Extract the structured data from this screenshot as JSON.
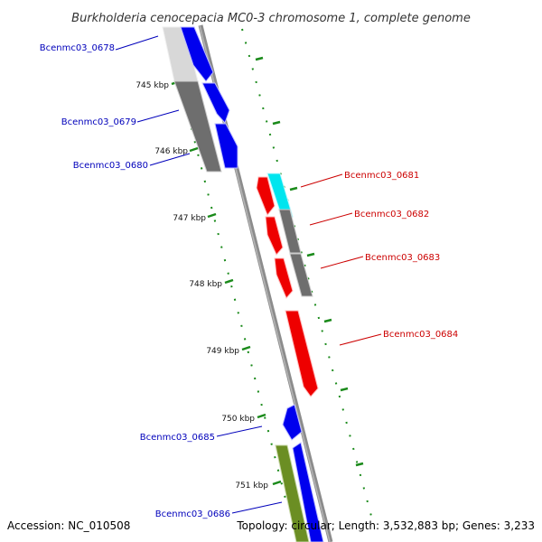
{
  "title": "Burkholderia cenocepacia MC0-3 chromosome 1, complete genome",
  "footer": {
    "accession": "Accession: NC_010508",
    "summary": "Topology: circular; Length: 3,532,883 bp; Genes: 3,233"
  },
  "ticks": [
    "745 kbp",
    "746 kbp",
    "747 kbp",
    "748 kbp",
    "749 kbp",
    "750 kbp",
    "751 kbp"
  ],
  "genes": [
    {
      "name": "Bcenmc03_0678",
      "strand": "forward",
      "color": "#0000ee"
    },
    {
      "name": "Bcenmc03_0679",
      "strand": "forward",
      "color": "#0000ee"
    },
    {
      "name": "Bcenmc03_0680",
      "strand": "forward",
      "color": "#0000ee"
    },
    {
      "name": "Bcenmc03_0681",
      "strand": "reverse",
      "color": "#ee0000"
    },
    {
      "name": "Bcenmc03_0682",
      "strand": "reverse",
      "color": "#ee0000"
    },
    {
      "name": "Bcenmc03_0683",
      "strand": "reverse",
      "color": "#ee0000"
    },
    {
      "name": "Bcenmc03_0684",
      "strand": "reverse",
      "color": "#ee0000"
    },
    {
      "name": "Bcenmc03_0685",
      "strand": "forward",
      "color": "#0000ee"
    },
    {
      "name": "Bcenmc03_0686",
      "strand": "forward",
      "color": "#0000ee"
    }
  ],
  "colors": {
    "forward_gene": "#0000ee",
    "reverse_gene": "#ee0000",
    "label_forward": "#0000bb",
    "label_reverse": "#cc0000",
    "cog_gray": "#6e6e6e",
    "cog_cyan": "#00e5ee",
    "cog_olive": "#6b8e23",
    "backbone": "#888888",
    "tick_green": "#1a8a1a"
  }
}
